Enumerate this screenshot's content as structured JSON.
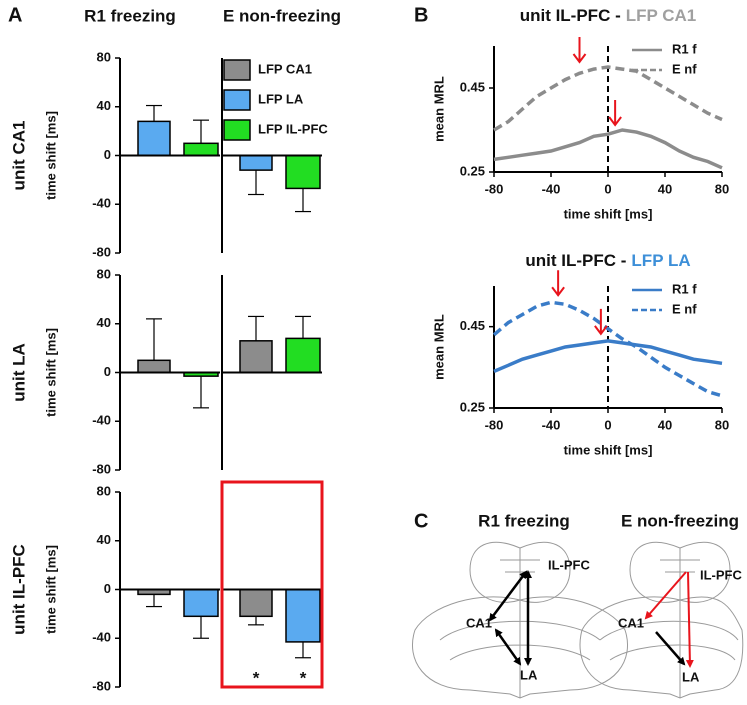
{
  "panel_labels": [
    "A",
    "B",
    "C"
  ],
  "diagram": {
    "titles": [
      "R1 freezing",
      "E non-freezing"
    ],
    "labels": [
      [
        "IL-PFC",
        "CA1",
        "LA"
      ],
      [
        "IL-PFC",
        "CA1",
        "LA"
      ]
    ]
  },
  "chart_data": [
    {
      "type": "bar",
      "title": "R1 freezing",
      "row_label": "unit CA1",
      "ylabel": "time shift [ms]",
      "categories": [
        null,
        null
      ],
      "values": [
        28,
        10
      ],
      "errors": [
        13,
        19
      ],
      "colors": [
        "#5aaaf0",
        "#22dd22"
      ],
      "ylim": [
        -80,
        80
      ],
      "yticks": [
        -80,
        -40,
        0,
        40,
        80
      ]
    },
    {
      "type": "bar",
      "title": "E non-freezing",
      "categories": [
        null,
        null
      ],
      "values": [
        -12,
        -27
      ],
      "errors": [
        20,
        19
      ],
      "colors": [
        "#5aaaf0",
        "#22dd22"
      ],
      "ylim": [
        -80,
        80
      ],
      "legend": [
        {
          "name": "LFP CA1",
          "color": "#8c8c8c"
        },
        {
          "name": "LFP LA",
          "color": "#5aaaf0"
        },
        {
          "name": "LFP IL-PFC",
          "color": "#22dd22"
        }
      ]
    },
    {
      "type": "bar",
      "row_label": "unit LA",
      "ylabel": "time shift [ms]",
      "categories": [
        null,
        null
      ],
      "values": [
        10,
        -3
      ],
      "errors": [
        34,
        26
      ],
      "colors": [
        "#8c8c8c",
        "#22dd22"
      ],
      "ylim": [
        -80,
        80
      ],
      "yticks": [
        -80,
        -40,
        0,
        40,
        80
      ]
    },
    {
      "type": "bar",
      "categories": [
        null,
        null
      ],
      "values": [
        26,
        28
      ],
      "errors": [
        20,
        18
      ],
      "colors": [
        "#8c8c8c",
        "#22dd22"
      ],
      "ylim": [
        -80,
        80
      ]
    },
    {
      "type": "bar",
      "row_label": "unit IL-PFC",
      "ylabel": "time shift [ms]",
      "categories": [
        null,
        null
      ],
      "values": [
        -4,
        -22
      ],
      "errors": [
        10,
        18
      ],
      "colors": [
        "#8c8c8c",
        "#5aaaf0"
      ],
      "ylim": [
        -80,
        80
      ],
      "yticks": [
        -80,
        -40,
        0,
        40,
        80
      ]
    },
    {
      "type": "bar",
      "categories": [
        null,
        null
      ],
      "values": [
        -22,
        -43
      ],
      "errors": [
        7,
        13
      ],
      "colors": [
        "#8c8c8c",
        "#5aaaf0"
      ],
      "ylim": [
        -80,
        80
      ],
      "annotations": [
        "*",
        "*"
      ],
      "highlight_color": "#e8141c"
    },
    {
      "type": "line",
      "title_parts": [
        {
          "text": "unit IL-PFC -",
          "color": "#111111"
        },
        {
          "text": "LFP CA1",
          "color": "#a0a0a0"
        }
      ],
      "xlabel": "time shift [ms]",
      "ylabel": "mean MRL",
      "x": [
        -80,
        -70,
        -60,
        -50,
        -40,
        -30,
        -20,
        -10,
        0,
        10,
        20,
        30,
        40,
        50,
        60,
        70,
        80
      ],
      "series": [
        {
          "name": "R1 f",
          "color": "#8c8c8c",
          "dashed": false,
          "values": [
            0.28,
            0.285,
            0.29,
            0.295,
            0.3,
            0.31,
            0.32,
            0.335,
            0.34,
            0.35,
            0.345,
            0.335,
            0.32,
            0.3,
            0.285,
            0.275,
            0.26
          ]
        },
        {
          "name": "E nf",
          "color": "#8c8c8c",
          "dashed": true,
          "values": [
            0.35,
            0.37,
            0.4,
            0.43,
            0.45,
            0.47,
            0.485,
            0.495,
            0.5,
            0.495,
            0.49,
            0.47,
            0.45,
            0.43,
            0.41,
            0.39,
            0.375
          ]
        }
      ],
      "xlim": [
        -80,
        80
      ],
      "xticks": [
        -80,
        -40,
        0,
        40,
        80
      ],
      "ylim": [
        0.25,
        0.55
      ],
      "yticks": [
        0.25,
        0.45
      ],
      "vline": 0,
      "arrow_color": "#e8141c",
      "arrows": [
        {
          "x": -20,
          "y": 0.5
        },
        {
          "x": 5,
          "y": 0.35
        }
      ]
    },
    {
      "type": "line",
      "title_parts": [
        {
          "text": "unit IL-PFC -",
          "color": "#111111"
        },
        {
          "text": "LFP LA",
          "color": "#3d8fd8"
        }
      ],
      "xlabel": "time shift [ms]",
      "ylabel": "mean MRL",
      "x": [
        -80,
        -70,
        -60,
        -50,
        -40,
        -30,
        -20,
        -10,
        0,
        10,
        20,
        30,
        40,
        50,
        60,
        70,
        80
      ],
      "series": [
        {
          "name": "R1 f",
          "color": "#3a7cc8",
          "dashed": false,
          "values": [
            0.34,
            0.355,
            0.37,
            0.38,
            0.39,
            0.4,
            0.405,
            0.41,
            0.415,
            0.41,
            0.405,
            0.4,
            0.39,
            0.38,
            0.37,
            0.365,
            0.36
          ]
        },
        {
          "name": "E nf",
          "color": "#3a7cc8",
          "dashed": true,
          "values": [
            0.43,
            0.46,
            0.48,
            0.5,
            0.51,
            0.505,
            0.49,
            0.47,
            0.445,
            0.42,
            0.4,
            0.375,
            0.35,
            0.33,
            0.31,
            0.29,
            0.28
          ]
        }
      ],
      "xlim": [
        -80,
        80
      ],
      "xticks": [
        -80,
        -40,
        0,
        40,
        80
      ],
      "ylim": [
        0.25,
        0.55
      ],
      "yticks": [
        0.25,
        0.45
      ],
      "vline": 0,
      "arrow_color": "#e8141c",
      "arrows": [
        {
          "x": -35,
          "y": 0.515
        },
        {
          "x": -5,
          "y": 0.42
        }
      ]
    }
  ]
}
